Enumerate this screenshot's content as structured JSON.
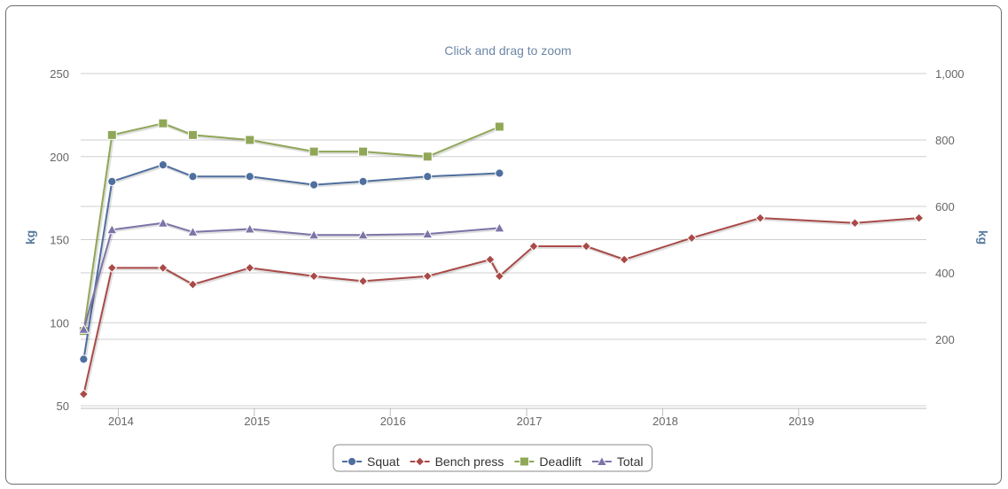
{
  "chart_data": {
    "type": "line",
    "subtitle": "Click and drag to zoom",
    "x_axis": {
      "type": "datetime",
      "range": [
        "2013-09-22",
        "2019-12-10"
      ],
      "tick_labels": [
        "2014",
        "2015",
        "2016",
        "2017",
        "2018",
        "2019"
      ]
    },
    "y_axis_left": {
      "title": "kg",
      "range": [
        50,
        250
      ],
      "tick_labels": [
        "50",
        "100",
        "150",
        "200",
        "250"
      ]
    },
    "y_axis_right": {
      "title": "kg",
      "range": [
        0,
        1000
      ],
      "tick_labels": [
        "200",
        "400",
        "600",
        "800",
        "1,000"
      ]
    },
    "grid": true,
    "legend": {
      "placement": "bottom-center"
    },
    "series": [
      {
        "name": "Squat",
        "axis": "left",
        "color": "#4f6f9e",
        "marker": "circle",
        "points": [
          [
            "2013-09-30",
            78
          ],
          [
            "2013-12-15",
            185
          ],
          [
            "2014-05-01",
            195
          ],
          [
            "2014-07-20",
            188
          ],
          [
            "2014-12-20",
            188
          ],
          [
            "2015-06-10",
            183
          ],
          [
            "2015-10-20",
            185
          ],
          [
            "2016-04-10",
            188
          ],
          [
            "2016-10-20",
            190
          ]
        ]
      },
      {
        "name": "Bench press",
        "axis": "left",
        "color": "#a94a48",
        "marker": "diamond",
        "points": [
          [
            "2013-09-30",
            57
          ],
          [
            "2013-12-15",
            133
          ],
          [
            "2014-05-01",
            133
          ],
          [
            "2014-07-20",
            123
          ],
          [
            "2014-12-20",
            133
          ],
          [
            "2015-06-10",
            128
          ],
          [
            "2015-10-20",
            125
          ],
          [
            "2016-04-10",
            128
          ],
          [
            "2016-09-25",
            138
          ],
          [
            "2016-10-20",
            128
          ],
          [
            "2017-01-20",
            146
          ],
          [
            "2017-06-10",
            146
          ],
          [
            "2017-09-20",
            138
          ],
          [
            "2018-03-20",
            151
          ],
          [
            "2018-09-20",
            163
          ],
          [
            "2019-06-01",
            160
          ],
          [
            "2019-11-20",
            163
          ]
        ]
      },
      {
        "name": "Deadlift",
        "axis": "left",
        "color": "#90a758",
        "marker": "square",
        "points": [
          [
            "2013-09-30",
            95
          ],
          [
            "2013-12-15",
            213
          ],
          [
            "2014-05-01",
            220
          ],
          [
            "2014-07-20",
            213
          ],
          [
            "2014-12-20",
            210
          ],
          [
            "2015-06-10",
            203
          ],
          [
            "2015-10-20",
            203
          ],
          [
            "2016-04-10",
            200
          ],
          [
            "2016-10-20",
            218
          ]
        ]
      },
      {
        "name": "Total",
        "axis": "right",
        "color": "#7d74a8",
        "marker": "triangle",
        "points": [
          [
            "2013-09-30",
            230
          ],
          [
            "2013-12-15",
            530
          ],
          [
            "2014-05-01",
            550
          ],
          [
            "2014-07-20",
            523
          ],
          [
            "2014-12-20",
            532
          ],
          [
            "2015-06-10",
            514
          ],
          [
            "2015-10-20",
            514
          ],
          [
            "2016-04-10",
            517
          ],
          [
            "2016-10-20",
            535
          ]
        ]
      }
    ]
  }
}
